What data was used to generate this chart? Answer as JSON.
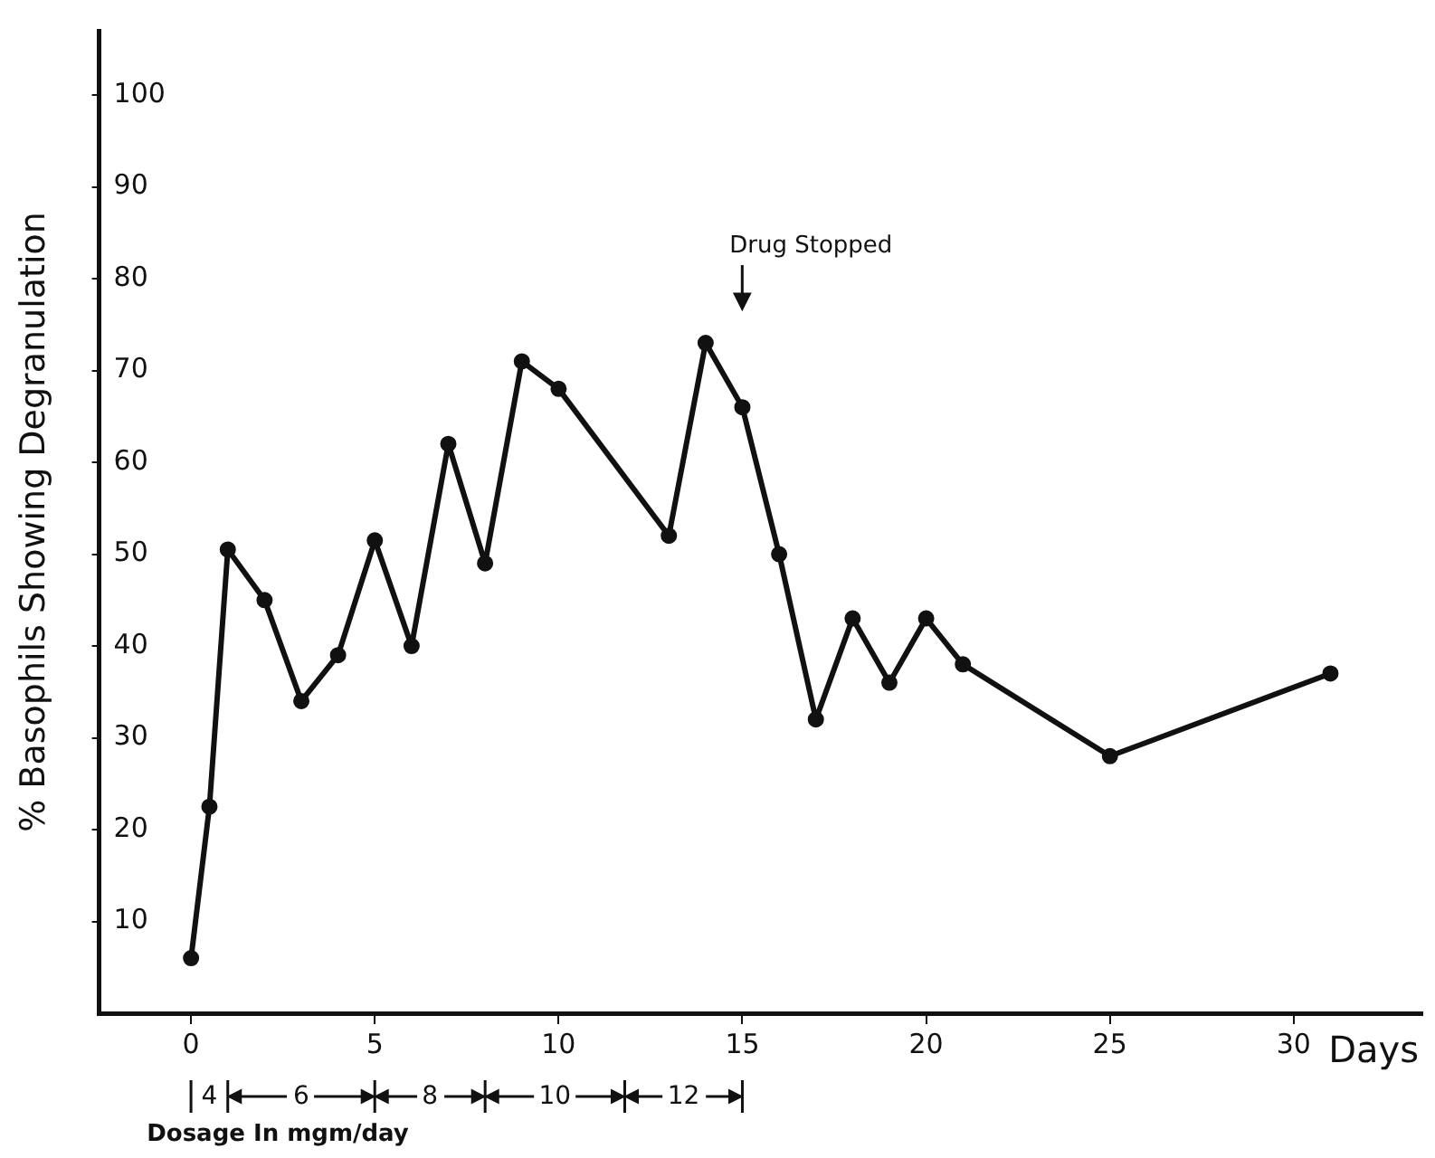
{
  "chart_data": {
    "type": "line",
    "ylabel": "% Basophils Showing Degranulation",
    "xlabel": "Days",
    "x": [
      0,
      0.5,
      1,
      2,
      3,
      4,
      5,
      6,
      7,
      8,
      9,
      10,
      13,
      14,
      15,
      16,
      17,
      18,
      19,
      20,
      21,
      25,
      31
    ],
    "values": [
      6,
      22.5,
      50.5,
      45,
      34,
      39,
      51.5,
      40,
      62,
      49,
      71,
      68,
      52,
      73,
      66,
      50,
      32,
      43,
      36,
      43,
      38,
      28,
      37
    ],
    "color": "#111111",
    "marker": "circle",
    "line_style": "solid",
    "grid": false,
    "legend": false,
    "xlim": [
      -2.5,
      33.5
    ],
    "xticks": [
      0,
      5,
      10,
      15,
      20,
      25,
      30
    ],
    "ylim": [
      0,
      107
    ],
    "yticks": [
      10,
      20,
      30,
      40,
      50,
      60,
      70,
      80,
      90,
      100
    ],
    "annotations": [
      "Drug Stopped",
      "4",
      "6",
      "8",
      "10",
      "12",
      "Dosage In mgm/day"
    ]
  }
}
